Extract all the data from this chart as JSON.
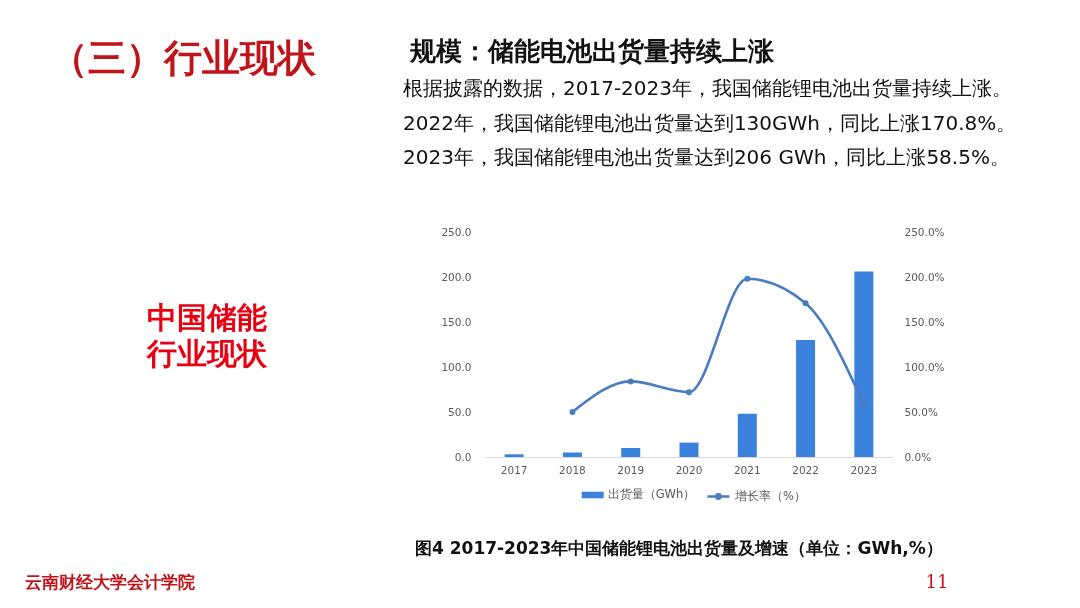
{
  "chart_data": {
    "type": "bar",
    "title": "规模：储能电池出货量持续上涨",
    "subtitle": "根据披露的数据，2017-2023年，我国储能锂电池出货量持续上涨。2022年，我国储能锂电池出货量达到130GWh，同比上涨170.8%。2023年，我国储能锂电池出货量达到206 GWh，同比上涨58.5%。",
    "annotations": [
      "（三）行业现状",
      "中国储能行业现状",
      "图4 2017-2023年中国储能锂电池出货量及增速（单位：GWh,%）",
      "云南财经大学会计学院",
      "11"
    ],
    "categories": [
      "2017",
      "2018",
      "2019",
      "2020",
      "2021",
      "2022",
      "2023"
    ],
    "series": [
      {
        "name": "出货量（GWh）",
        "color": "#3b82dd",
        "values": [
          3,
          5,
          10,
          16,
          48,
          130,
          206
        ]
      },
      {
        "name": "增长率（%）",
        "type": "line",
        "axis": "y2",
        "color": "#4a7cc0",
        "values": [
          null,
          50,
          84,
          72,
          198,
          170.8,
          58.5
        ]
      }
    ],
    "ylim": [
      0,
      250
    ],
    "yticks": [
      {
        "value": 0,
        "label": "0.0"
      },
      {
        "value": 50,
        "label": "50.0"
      },
      {
        "value": 100,
        "label": "100.0"
      },
      {
        "value": 150,
        "label": "150.0"
      },
      {
        "value": 200,
        "label": "200.0"
      },
      {
        "value": 250,
        "label": "250.0"
      }
    ],
    "y2lim": [
      0,
      250
    ],
    "y2ticks": [
      {
        "value": 0,
        "label": "0.0%"
      },
      {
        "value": 50,
        "label": "50.0%"
      },
      {
        "value": 100,
        "label": "100.0%"
      },
      {
        "value": 150,
        "label": "150.0%"
      },
      {
        "value": 200,
        "label": "200.0%"
      },
      {
        "value": 250,
        "label": "250.0%"
      }
    ],
    "grid": false,
    "legend": "bottom",
    "marker": "circle",
    "line_style": "solid"
  }
}
